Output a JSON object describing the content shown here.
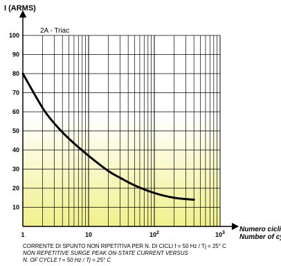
{
  "chart_data": {
    "type": "line",
    "y_axis_title": "I (ARMS)",
    "x_axis_title": "Numero cicli",
    "x_axis_subtitle": "Number of cycle",
    "series_label": "2A - Triac",
    "x_scale": "log",
    "x_ticks": [
      {
        "value": 1,
        "base": "1",
        "exp": ""
      },
      {
        "value": 10,
        "base": "10",
        "exp": ""
      },
      {
        "value": 100,
        "base": "10",
        "exp": "2"
      },
      {
        "value": 1000,
        "base": "10",
        "exp": "3"
      }
    ],
    "xlim": [
      1,
      1000
    ],
    "ylim": [
      0,
      100
    ],
    "y_ticks": [
      10,
      20,
      30,
      40,
      50,
      60,
      70,
      80,
      90,
      100
    ],
    "grid": true,
    "series": [
      {
        "x": [
          1,
          2,
          3,
          5,
          10,
          20,
          30,
          50,
          100,
          200,
          400
        ],
        "y": [
          80,
          62,
          54,
          46,
          37,
          29,
          25.5,
          21.5,
          17.5,
          15,
          14
        ]
      }
    ],
    "background_gradient": {
      "top": "#ffffff",
      "bottom": "#f0f08c"
    },
    "caption": [
      "CORRENTE DI SPUNTO NON RIPETITIVA PER N. DI CICLI f = 50 Hz / Tj = 25° C",
      "NON REPETITIVE SURGE PEAK ON-STATE CURRENT VERSUS",
      "N. OF CYCLE f = 50 Hz / Tj = 25° C"
    ]
  }
}
